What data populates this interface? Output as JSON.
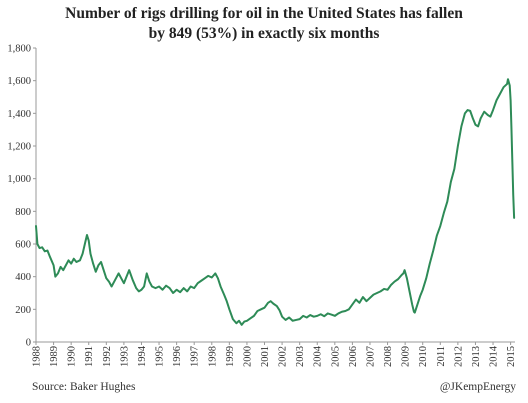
{
  "chart_data": {
    "type": "line",
    "title_line1": "Number of  rigs drilling for oil in the United States has fallen",
    "title_line2": "by 849 (53%) in exactly six months",
    "xlabel": "",
    "ylabel": "",
    "ylim": [
      0,
      1800
    ],
    "yticks": [
      0,
      200,
      400,
      600,
      800,
      1000,
      1200,
      1400,
      1600,
      1800
    ],
    "ytick_labels": [
      "0",
      "200",
      "400",
      "600",
      "800",
      "1,000",
      "1,200",
      "1,400",
      "1,600",
      "1,800"
    ],
    "xlim": [
      1988,
      2015.25
    ],
    "xticks": [
      1988,
      1989,
      1990,
      1991,
      1992,
      1993,
      1994,
      1995,
      1996,
      1997,
      1998,
      1999,
      2000,
      2001,
      2002,
      2003,
      2004,
      2005,
      2006,
      2007,
      2008,
      2009,
      2010,
      2011,
      2012,
      2013,
      2014,
      2015
    ],
    "grid": false,
    "legend": "none",
    "line_color": "#2e8b57",
    "series": [
      {
        "points": [
          [
            1988.0,
            710
          ],
          [
            1988.08,
            600
          ],
          [
            1988.2,
            575
          ],
          [
            1988.35,
            580
          ],
          [
            1988.5,
            555
          ],
          [
            1988.65,
            560
          ],
          [
            1988.8,
            520
          ],
          [
            1989.0,
            470
          ],
          [
            1989.1,
            400
          ],
          [
            1989.25,
            420
          ],
          [
            1989.4,
            460
          ],
          [
            1989.55,
            440
          ],
          [
            1989.7,
            470
          ],
          [
            1989.85,
            500
          ],
          [
            1990.0,
            480
          ],
          [
            1990.15,
            510
          ],
          [
            1990.3,
            490
          ],
          [
            1990.5,
            500
          ],
          [
            1990.65,
            540
          ],
          [
            1990.8,
            610
          ],
          [
            1990.9,
            655
          ],
          [
            1991.0,
            620
          ],
          [
            1991.1,
            540
          ],
          [
            1991.25,
            480
          ],
          [
            1991.4,
            430
          ],
          [
            1991.55,
            470
          ],
          [
            1991.7,
            490
          ],
          [
            1991.85,
            440
          ],
          [
            1992.0,
            390
          ],
          [
            1992.15,
            370
          ],
          [
            1992.3,
            340
          ],
          [
            1992.5,
            380
          ],
          [
            1992.7,
            420
          ],
          [
            1992.85,
            390
          ],
          [
            1993.0,
            360
          ],
          [
            1993.15,
            400
          ],
          [
            1993.3,
            440
          ],
          [
            1993.5,
            380
          ],
          [
            1993.7,
            330
          ],
          [
            1993.85,
            310
          ],
          [
            1994.0,
            320
          ],
          [
            1994.15,
            340
          ],
          [
            1994.3,
            420
          ],
          [
            1994.45,
            370
          ],
          [
            1994.6,
            340
          ],
          [
            1994.8,
            330
          ],
          [
            1995.0,
            340
          ],
          [
            1995.2,
            320
          ],
          [
            1995.4,
            345
          ],
          [
            1995.6,
            330
          ],
          [
            1995.8,
            300
          ],
          [
            1996.0,
            320
          ],
          [
            1996.2,
            305
          ],
          [
            1996.4,
            330
          ],
          [
            1996.6,
            310
          ],
          [
            1996.8,
            340
          ],
          [
            1997.0,
            330
          ],
          [
            1997.2,
            360
          ],
          [
            1997.4,
            375
          ],
          [
            1997.6,
            390
          ],
          [
            1997.8,
            405
          ],
          [
            1998.0,
            395
          ],
          [
            1998.2,
            420
          ],
          [
            1998.35,
            390
          ],
          [
            1998.5,
            340
          ],
          [
            1998.7,
            290
          ],
          [
            1998.85,
            250
          ],
          [
            1999.0,
            200
          ],
          [
            1999.2,
            140
          ],
          [
            1999.4,
            115
          ],
          [
            1999.55,
            130
          ],
          [
            1999.7,
            105
          ],
          [
            1999.85,
            125
          ],
          [
            2000.0,
            130
          ],
          [
            2000.2,
            145
          ],
          [
            2000.4,
            160
          ],
          [
            2000.6,
            190
          ],
          [
            2000.8,
            200
          ],
          [
            2001.0,
            210
          ],
          [
            2001.2,
            240
          ],
          [
            2001.35,
            250
          ],
          [
            2001.5,
            235
          ],
          [
            2001.7,
            220
          ],
          [
            2001.85,
            195
          ],
          [
            2002.0,
            155
          ],
          [
            2002.2,
            135
          ],
          [
            2002.4,
            150
          ],
          [
            2002.6,
            130
          ],
          [
            2002.8,
            135
          ],
          [
            2003.0,
            140
          ],
          [
            2003.2,
            160
          ],
          [
            2003.4,
            150
          ],
          [
            2003.6,
            165
          ],
          [
            2003.8,
            155
          ],
          [
            2004.0,
            160
          ],
          [
            2004.2,
            170
          ],
          [
            2004.4,
            158
          ],
          [
            2004.6,
            175
          ],
          [
            2004.8,
            168
          ],
          [
            2005.0,
            160
          ],
          [
            2005.2,
            175
          ],
          [
            2005.4,
            185
          ],
          [
            2005.6,
            190
          ],
          [
            2005.8,
            200
          ],
          [
            2006.0,
            230
          ],
          [
            2006.2,
            260
          ],
          [
            2006.4,
            240
          ],
          [
            2006.6,
            275
          ],
          [
            2006.8,
            250
          ],
          [
            2007.0,
            270
          ],
          [
            2007.2,
            290
          ],
          [
            2007.4,
            300
          ],
          [
            2007.6,
            310
          ],
          [
            2007.8,
            325
          ],
          [
            2008.0,
            320
          ],
          [
            2008.2,
            350
          ],
          [
            2008.4,
            370
          ],
          [
            2008.6,
            385
          ],
          [
            2008.8,
            410
          ],
          [
            2008.9,
            420
          ],
          [
            2008.97,
            440
          ],
          [
            2009.1,
            390
          ],
          [
            2009.25,
            310
          ],
          [
            2009.4,
            230
          ],
          [
            2009.5,
            185
          ],
          [
            2009.55,
            180
          ],
          [
            2009.7,
            230
          ],
          [
            2009.85,
            280
          ],
          [
            2010.0,
            320
          ],
          [
            2010.2,
            390
          ],
          [
            2010.4,
            480
          ],
          [
            2010.6,
            560
          ],
          [
            2010.8,
            650
          ],
          [
            2011.0,
            710
          ],
          [
            2011.2,
            790
          ],
          [
            2011.4,
            860
          ],
          [
            2011.6,
            980
          ],
          [
            2011.8,
            1060
          ],
          [
            2012.0,
            1200
          ],
          [
            2012.2,
            1320
          ],
          [
            2012.4,
            1400
          ],
          [
            2012.55,
            1420
          ],
          [
            2012.7,
            1415
          ],
          [
            2012.85,
            1370
          ],
          [
            2013.0,
            1330
          ],
          [
            2013.15,
            1320
          ],
          [
            2013.3,
            1370
          ],
          [
            2013.5,
            1410
          ],
          [
            2013.7,
            1390
          ],
          [
            2013.85,
            1380
          ],
          [
            2014.0,
            1420
          ],
          [
            2014.2,
            1480
          ],
          [
            2014.4,
            1520
          ],
          [
            2014.6,
            1560
          ],
          [
            2014.8,
            1580
          ],
          [
            2014.85,
            1609
          ],
          [
            2014.95,
            1570
          ],
          [
            2015.0,
            1480
          ],
          [
            2015.05,
            1300
          ],
          [
            2015.1,
            1100
          ],
          [
            2015.15,
            900
          ],
          [
            2015.2,
            760
          ]
        ]
      }
    ]
  },
  "footer": {
    "source": "Source: Baker Hughes",
    "credit": "@JKempEnergy"
  }
}
